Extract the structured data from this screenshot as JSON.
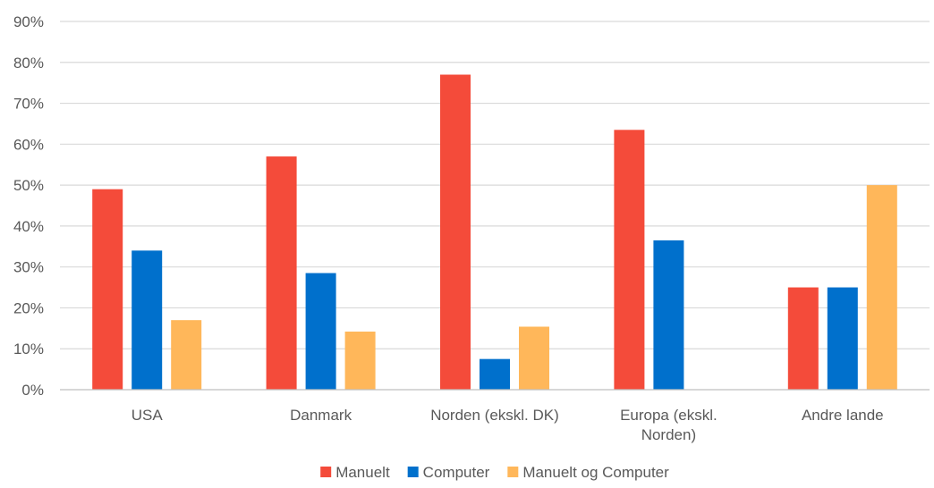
{
  "chart_data": {
    "type": "bar",
    "categories": [
      [
        "USA"
      ],
      [
        "Danmark"
      ],
      [
        "Norden (ekskl. DK)"
      ],
      [
        "Europa (ekskl.",
        "Norden)"
      ],
      [
        "Andre lande"
      ]
    ],
    "series": [
      {
        "name": "Manuelt",
        "color": "#f44b3a",
        "values": [
          49,
          57,
          77,
          63.5,
          25
        ]
      },
      {
        "name": "Computer",
        "color": "#0070cc",
        "values": [
          34,
          28.5,
          7.5,
          36.5,
          25
        ]
      },
      {
        "name": "Manuelt og Computer",
        "color": "#ffb75a",
        "values": [
          17,
          14.2,
          15.4,
          0,
          50
        ]
      }
    ],
    "y_ticks": [
      "0%",
      "10%",
      "20%",
      "30%",
      "40%",
      "50%",
      "60%",
      "70%",
      "80%",
      "90%"
    ],
    "ylim": [
      0,
      90
    ],
    "grid": true,
    "legend_position": "bottom",
    "colors": {
      "grid": "#d9d9d9",
      "axis": "#bfbfbf",
      "text": "#595959"
    }
  }
}
